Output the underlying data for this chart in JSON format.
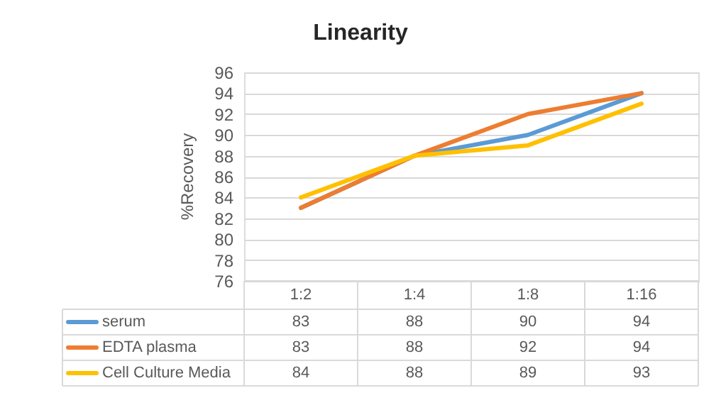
{
  "chart_data": {
    "type": "line",
    "title": "Linearity",
    "ylabel": "%Recovery",
    "categories": [
      "1:2",
      "1:4",
      "1:8",
      "1:16"
    ],
    "series": [
      {
        "name": "serum",
        "color": "#5b9bd5",
        "values": [
          83,
          88,
          90,
          94
        ]
      },
      {
        "name": "EDTA plasma",
        "color": "#ed7d31",
        "values": [
          83,
          88,
          92,
          94
        ]
      },
      {
        "name": "Cell Culture Media",
        "color": "#ffc000",
        "values": [
          84,
          88,
          89,
          93
        ]
      }
    ],
    "ylim": [
      76,
      96
    ],
    "yticks": [
      76,
      78,
      80,
      82,
      84,
      86,
      88,
      90,
      92,
      94,
      96
    ],
    "grid": "y",
    "legend": "bottom",
    "data_labels": true,
    "marker": "none",
    "line_style": "solid"
  }
}
